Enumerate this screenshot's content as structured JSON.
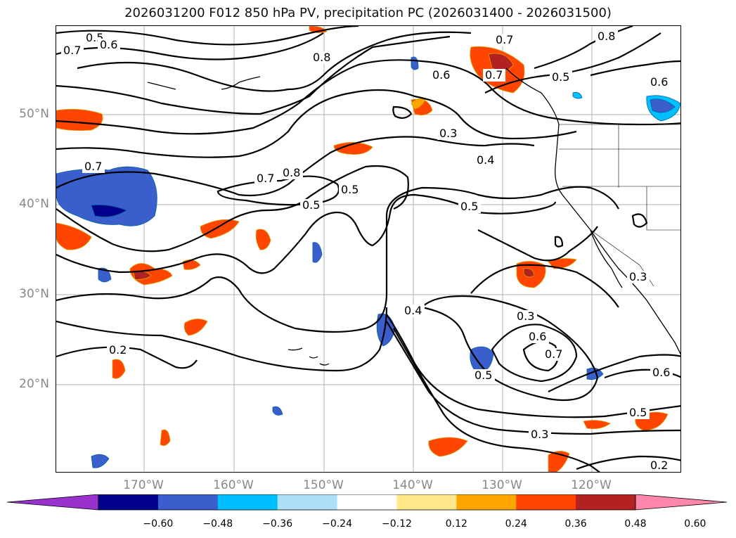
{
  "title": "2026031200 F012 850 hPa PV, precipitation PC (2026031400 - 2026031500)",
  "map": {
    "latitude_labels": [
      "50°N",
      "40°N",
      "30°N",
      "20°N"
    ],
    "longitude_labels": [
      "170°W",
      "160°W",
      "150°W",
      "140°W",
      "130°W",
      "120°W"
    ],
    "contour_labels": [
      "0.5",
      "0.6",
      "0.7",
      "0.8",
      "0.7",
      "0.6",
      "0.7",
      "0.6",
      "0.5",
      "0.3",
      "0.4",
      "0.5",
      "0.7",
      "0.8",
      "0.5",
      "0.5",
      "0.3",
      "0.6",
      "0.7",
      "0.5",
      "0.6",
      "0.4",
      "0.2",
      "0.3",
      "0.3",
      "0.5",
      "0.2",
      "0.7",
      "0.8"
    ],
    "colors": {
      "contour": "#000000",
      "coastline": "#000000",
      "grid": "#b0b0b0",
      "axis_label": "#888888"
    }
  },
  "colorbar": {
    "ticks": [
      "−0.60",
      "−0.48",
      "−0.36",
      "−0.24",
      "−0.12",
      "0.12",
      "0.24",
      "0.36",
      "0.48",
      "0.60"
    ],
    "colors": [
      "#9932CC",
      "#00008B",
      "#3A5FCD",
      "#00BFFF",
      "#ADE0F8",
      "#FFFFFF",
      "#FFE88A",
      "#FFA500",
      "#FF4500",
      "#B22222",
      "#FF88AA"
    ]
  }
}
